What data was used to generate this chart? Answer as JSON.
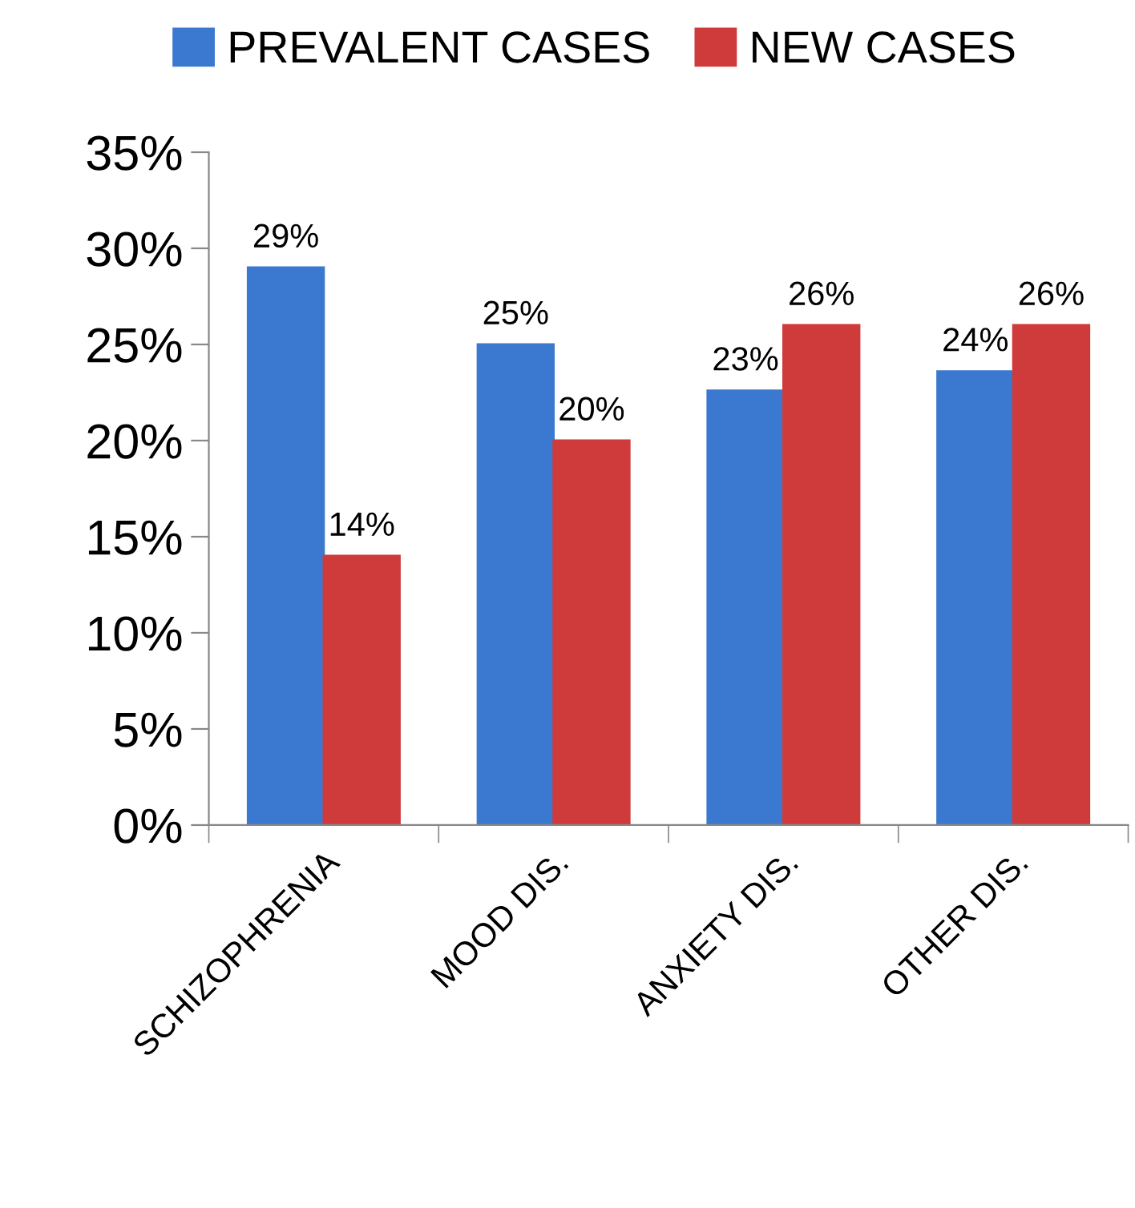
{
  "chart_data": {
    "type": "bar",
    "categories": [
      "SCHIZOPHRENIA",
      "MOOD DIS.",
      "ANXIETY DIS.",
      "OTHER DIS."
    ],
    "series": [
      {
        "name": "PREVALENT CASES",
        "color": "#3b78cf",
        "values": [
          29,
          25,
          22.6,
          23.6
        ],
        "value_labels": [
          "29%",
          "25%",
          "23%",
          "24%"
        ]
      },
      {
        "name": "NEW CASES",
        "color": "#cf3b3b",
        "values": [
          14,
          20,
          26,
          26
        ],
        "value_labels": [
          "14%",
          "20%",
          "26%",
          "26%"
        ]
      }
    ],
    "ylim": [
      0,
      35
    ],
    "yticks": [
      {
        "value": 0,
        "label": "0%"
      },
      {
        "value": 5,
        "label": "5%"
      },
      {
        "value": 10,
        "label": "10%"
      },
      {
        "value": 15,
        "label": "15%"
      },
      {
        "value": 20,
        "label": "20%"
      },
      {
        "value": 25,
        "label": "25%"
      },
      {
        "value": 30,
        "label": "30%"
      },
      {
        "value": 35,
        "label": "35%"
      }
    ],
    "grid": false,
    "legend": "top"
  }
}
